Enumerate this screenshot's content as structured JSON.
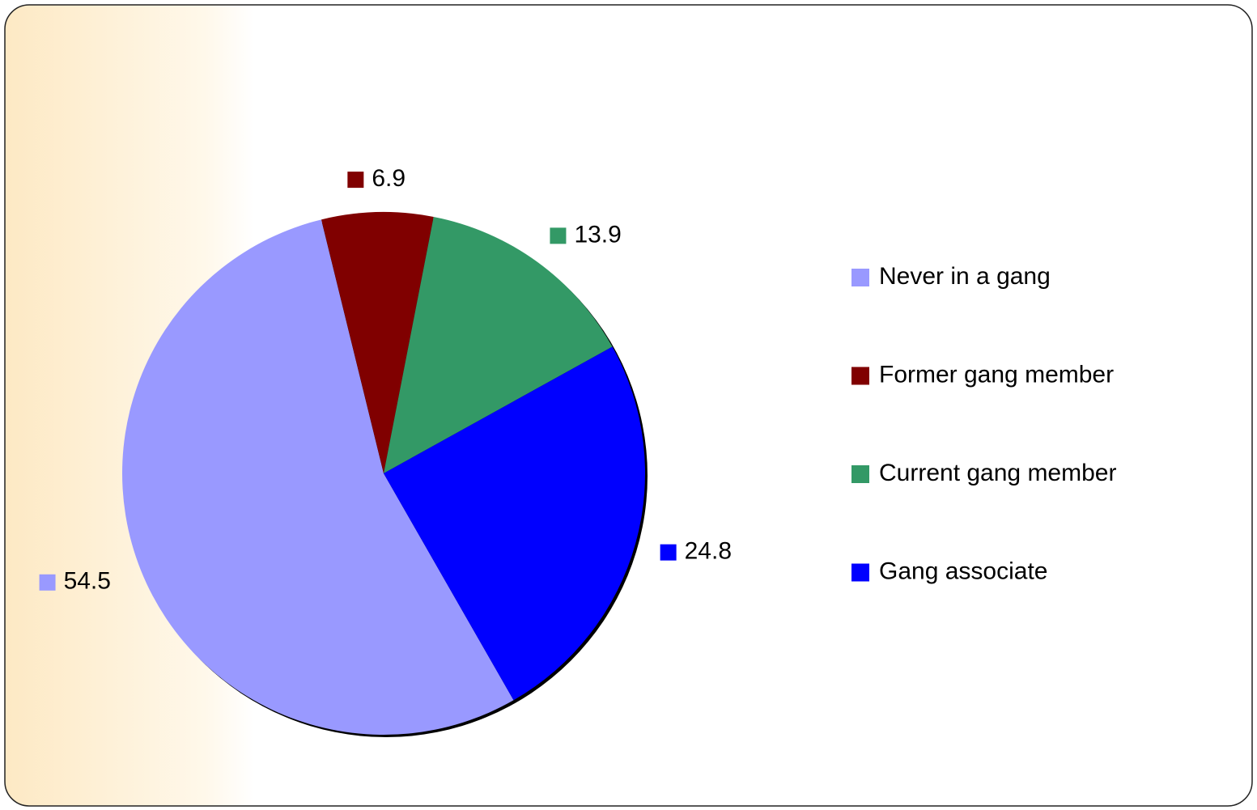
{
  "chart_data": {
    "type": "pie",
    "categories": [
      "Never in a gang",
      "Former gang member",
      "Current gang member",
      "Gang associate"
    ],
    "values": [
      54.5,
      6.9,
      13.9,
      24.8
    ],
    "colors": [
      "#9999ff",
      "#800000",
      "#339966",
      "#0000ff"
    ],
    "legend": "right"
  }
}
